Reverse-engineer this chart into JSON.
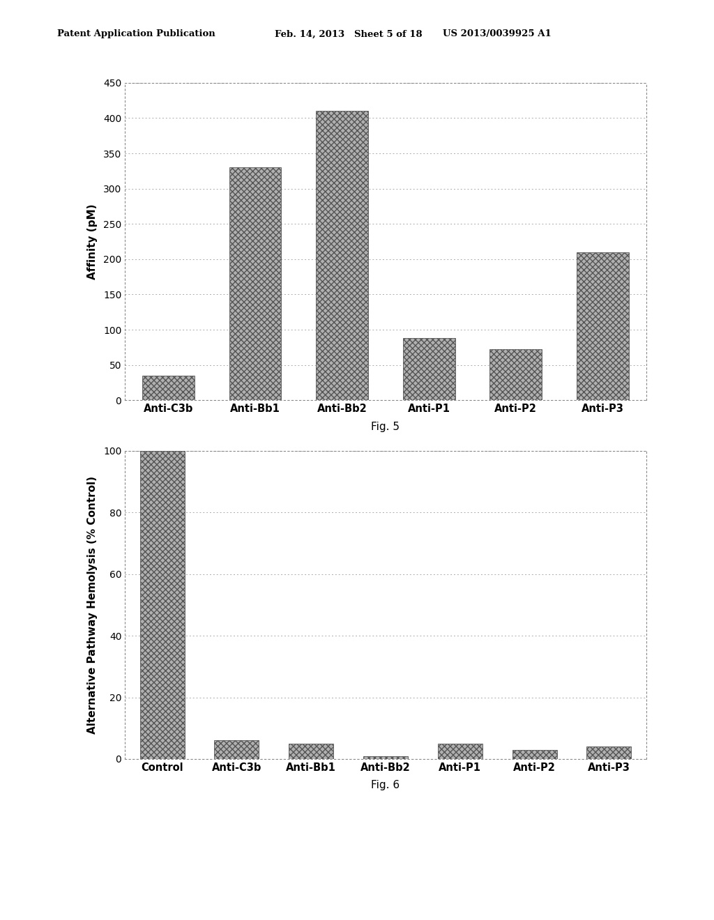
{
  "fig5": {
    "categories": [
      "Anti-C3b",
      "Anti-Bb1",
      "Anti-Bb2",
      "Anti-P1",
      "Anti-P2",
      "Anti-P3"
    ],
    "values": [
      35,
      330,
      410,
      88,
      72,
      210
    ],
    "ylabel": "Affinity (pM)",
    "ylim": [
      0,
      450
    ],
    "yticks": [
      0,
      50,
      100,
      150,
      200,
      250,
      300,
      350,
      400,
      450
    ],
    "caption": "Fig. 5"
  },
  "fig6": {
    "categories": [
      "Control",
      "Anti-C3b",
      "Anti-Bb1",
      "Anti-Bb2",
      "Anti-P1",
      "Anti-P2",
      "Anti-P3"
    ],
    "values": [
      100,
      6,
      5,
      1,
      5,
      3,
      4
    ],
    "ylabel": "Alternative Pathway Hemolysis (% Control)",
    "ylim": [
      0,
      100
    ],
    "yticks": [
      0,
      20,
      40,
      60,
      80,
      100
    ],
    "caption": "Fig. 6"
  },
  "bar_color": "#b0b0b0",
  "bar_hatch": "xxxx",
  "background_color": "#ffffff",
  "header_left": "Patent Application Publication",
  "header_middle": "Feb. 14, 2013   Sheet 5 of 18",
  "header_right": "US 2013/0039925 A1"
}
